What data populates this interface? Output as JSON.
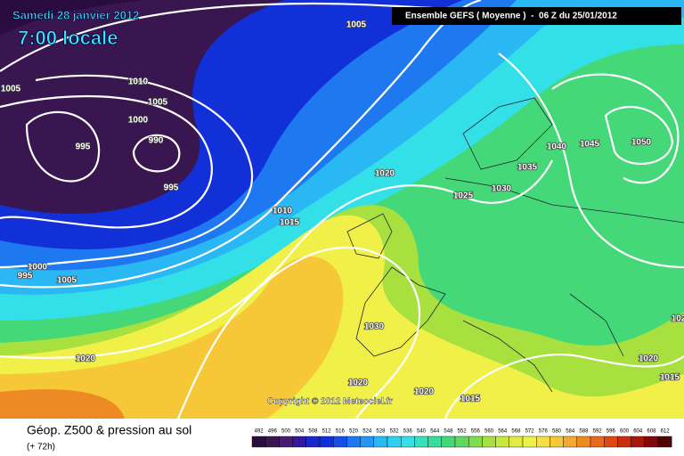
{
  "header": {
    "date": "Samedi 28 janvier 2012",
    "time": "7:00 locale",
    "run": "Ensemble GEFS ( Moyenne )  -  06 Z du 25/01/2012"
  },
  "copyright": "Copyright © 2012 Meteociel.fr",
  "footer": {
    "title": "Géop. Z500 & pression au sol",
    "range": "(+ 72h)"
  },
  "isobar_labels": [
    "1005",
    "1005",
    "1010",
    "1005",
    "1000",
    "995",
    "990",
    "995",
    "1010",
    "1015",
    "1020",
    "1025",
    "1030",
    "1035",
    "1040",
    "1045",
    "1050",
    "1000",
    "995",
    "1005",
    "1020",
    "1030",
    "1020",
    "1020",
    "1015",
    "1020",
    "1015",
    "102"
  ],
  "legend": {
    "labels": [
      492,
      496,
      500,
      504,
      508,
      512,
      516,
      520,
      524,
      528,
      532,
      536,
      540,
      544,
      548,
      552,
      556,
      560,
      564,
      568,
      572,
      576,
      580,
      584,
      588,
      592,
      596,
      600,
      604,
      608,
      612
    ]
  }
}
